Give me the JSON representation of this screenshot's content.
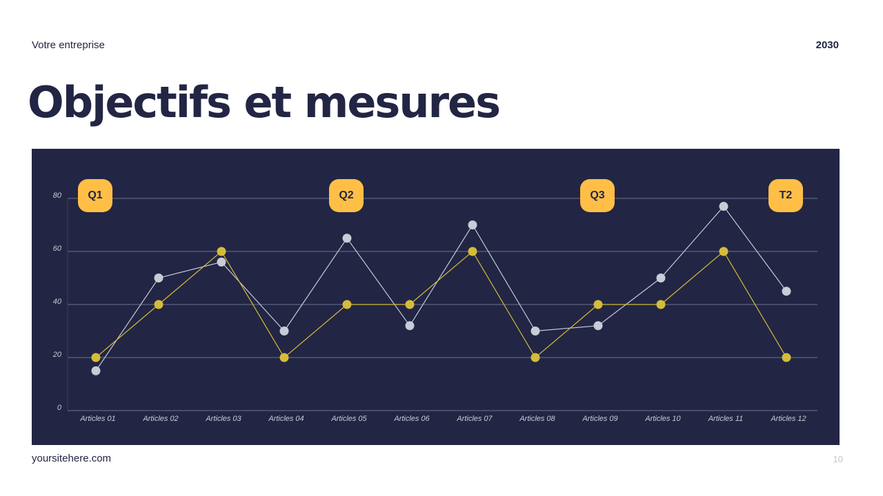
{
  "header": {
    "company": "Votre entreprise",
    "year": "2030",
    "title": "Objectifs et mesures"
  },
  "footer": {
    "url": "yoursitehere.com",
    "page": "10"
  },
  "colors": {
    "background": "#222644",
    "series_a": "#d4bc3a",
    "series_b": "#c9cbd6",
    "badge": "#ffbf47",
    "gridline": "#6f7394",
    "label": "#c9cbd6"
  },
  "chart_data": {
    "type": "line",
    "title": "",
    "categories": [
      "Articles 01",
      "Articles 02",
      "Articles 03",
      "Articles 04",
      "Articles 05",
      "Articles 06",
      "Articles 07",
      "Articles 08",
      "Articles 09",
      "Articles 10",
      "Articles 11",
      "Articles 12"
    ],
    "series": [
      {
        "values": [
          20,
          40,
          60,
          20,
          40,
          40,
          60,
          20,
          40,
          40,
          60,
          20
        ]
      },
      {
        "values": [
          15,
          50,
          56,
          30,
          65,
          32,
          70,
          30,
          32,
          50,
          77,
          45
        ]
      }
    ],
    "y_ticks": [
      "0",
      "20",
      "40",
      "60",
      "80"
    ],
    "ylim": [
      0,
      80
    ],
    "grid": true,
    "quarter_labels": [
      {
        "text": "Q1",
        "category_index": 0
      },
      {
        "text": "Q2",
        "category_index": 4
      },
      {
        "text": "Q3",
        "category_index": 8
      },
      {
        "text": "T2",
        "category_index": 11
      }
    ]
  }
}
